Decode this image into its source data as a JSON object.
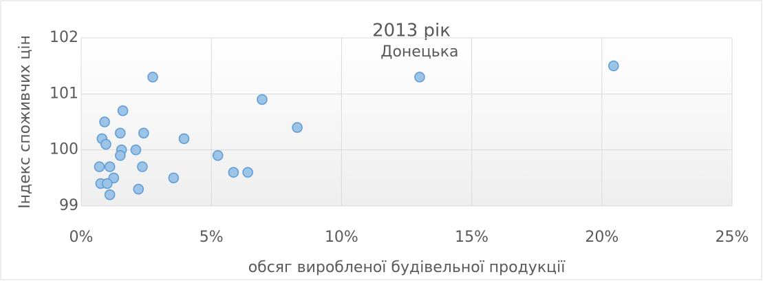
{
  "chart_data": {
    "type": "scatter",
    "title": "2013 рік",
    "x_label": "обсяг виробленої будівельної продукції",
    "y_label": "Індекс споживчих цін",
    "annotations": [
      {
        "text": "Донецька",
        "x": 13,
        "y": 101.3
      }
    ],
    "series": [
      {
        "name": "",
        "color": "#9dc3e6",
        "x": [
          2.75,
          13,
          20.45,
          6.95,
          8.3,
          1.6,
          0.9,
          1.5,
          2.4,
          3.95,
          0.8,
          0.95,
          1.55,
          2.1,
          1.5,
          5.25,
          0.7,
          1.1,
          2.35,
          5.85,
          6.4,
          1.25,
          3.55,
          0.75,
          1.0,
          2.2,
          1.1
        ],
        "values": [
          101.3,
          101.3,
          101.5,
          100.9,
          100.4,
          100.7,
          100.5,
          100.3,
          100.3,
          100.2,
          100.2,
          100.1,
          100.0,
          100.0,
          99.9,
          99.9,
          99.7,
          99.7,
          99.7,
          99.6,
          99.6,
          99.5,
          99.5,
          99.4,
          99.4,
          99.3,
          99.2
        ]
      }
    ],
    "xlim": [
      0,
      25
    ],
    "xticks": [
      {
        "value": 0,
        "label": "0%"
      },
      {
        "value": 5,
        "label": "5%"
      },
      {
        "value": 10,
        "label": "10%"
      },
      {
        "value": 15,
        "label": "15%"
      },
      {
        "value": 20,
        "label": "20%"
      },
      {
        "value": 25,
        "label": "25%"
      }
    ],
    "ylim": [
      99,
      102
    ],
    "yticks": [
      99,
      100,
      101,
      102
    ],
    "grid": true
  }
}
